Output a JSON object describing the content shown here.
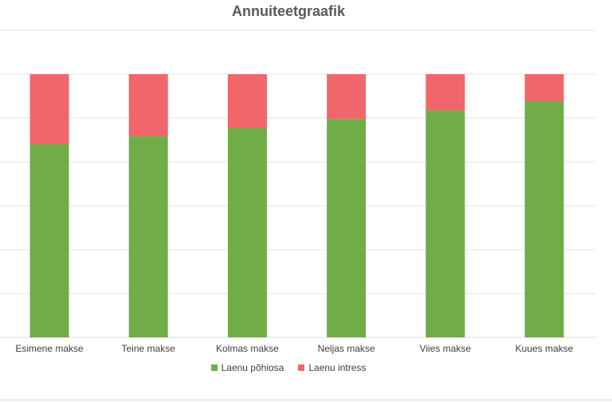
{
  "chart_data": {
    "type": "bar",
    "stacked": true,
    "title": "Annuiteetgraafik",
    "xlabel": "",
    "ylabel": "",
    "categories": [
      "Esimene makse",
      "Teine makse",
      "Kolmas makse",
      "Neljas makse",
      "Viies makse",
      "Kuues makse"
    ],
    "series": [
      {
        "name": "Laenu põhiosa",
        "color": "#70ad47",
        "values": [
          4.4,
          4.58,
          4.77,
          4.97,
          5.17,
          5.38
        ]
      },
      {
        "name": "Laenu intress",
        "color": "#f0666b",
        "values": [
          1.6,
          1.42,
          1.23,
          1.03,
          0.83,
          0.62
        ]
      }
    ],
    "ylim": [
      0,
      7
    ],
    "grid": true,
    "legend": "bottom"
  }
}
